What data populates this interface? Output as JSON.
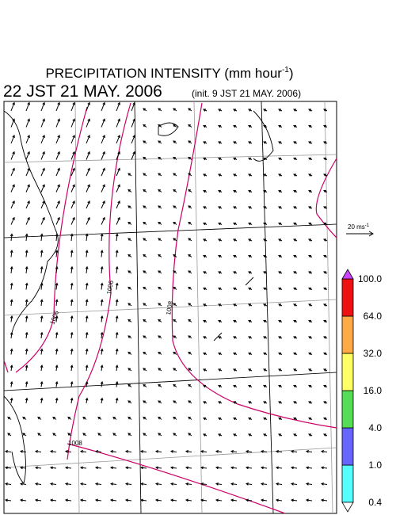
{
  "header": {
    "title": "PRECIPITATION INTENSITY (mm hour",
    "title_sup": "-1",
    "title_end": ")",
    "valid_time": "22 JST 21 MAY. 2006",
    "init_time": "(init. 9 JST 21 MAY. 2006)"
  },
  "vector_legend": {
    "label": "20 ms",
    "sup": "-1"
  },
  "colorbar": {
    "levels": [
      "0.4",
      "1.0",
      "4.0",
      "16.0",
      "32.0",
      "64.0",
      "100.0"
    ],
    "colors": [
      "#55ffff",
      "#6666ff",
      "#55dd55",
      "#ffff66",
      "#ffaa44",
      "#ee1111"
    ],
    "over_color": "#cc44ff",
    "under_color": "#ffffff"
  },
  "contour_labels": [
    "1006",
    "1008",
    "1006",
    "1008"
  ]
}
